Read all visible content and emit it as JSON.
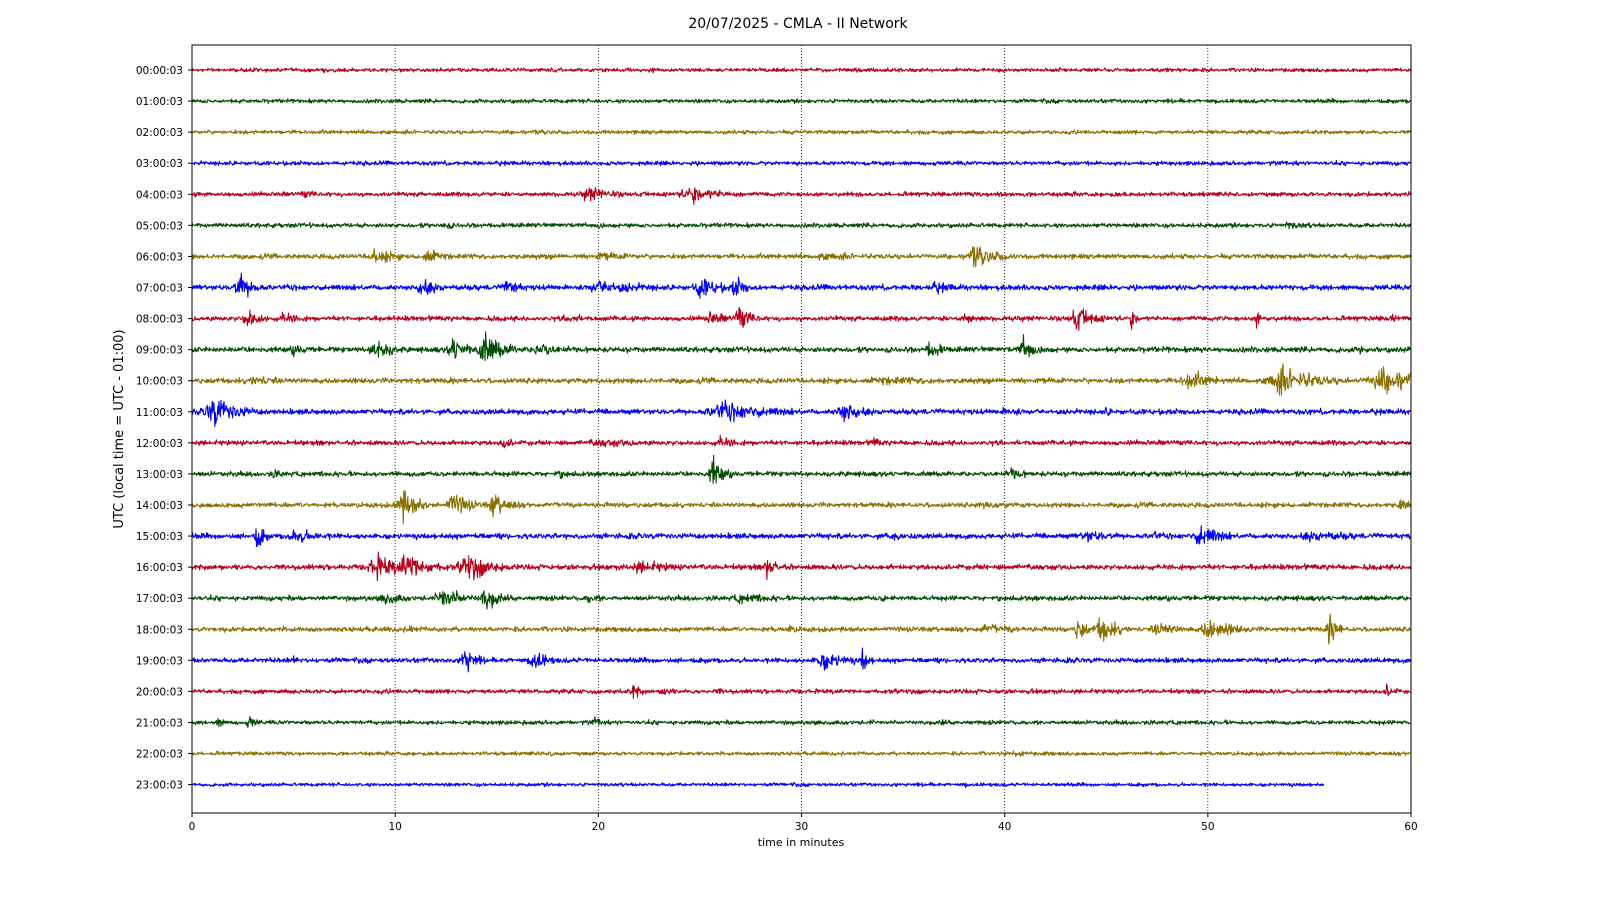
{
  "chart_data": {
    "type": "line",
    "title": "20/07/2025 - CMLA - II Network",
    "xlabel": "time in minutes",
    "ylabel": "UTC (local time = UTC - 01:00)",
    "xlim": [
      0,
      60
    ],
    "x_ticks": [
      "0",
      "10",
      "20",
      "30",
      "40",
      "50",
      "60"
    ],
    "grid": "vertical dotted lines at x ticks",
    "colors": [
      "#b5001b",
      "#004d00",
      "#8a7000",
      "#0000f5"
    ],
    "traces": [
      {
        "label": "00:00:03",
        "color": "#b5001b",
        "end_min": 60,
        "noise": 1.5,
        "events": [
          {
            "t": 22.7,
            "amp": 2,
            "w": 0.2
          },
          {
            "t": 16,
            "amp": 1,
            "w": 1
          }
        ]
      },
      {
        "label": "01:00:03",
        "color": "#004d00",
        "end_min": 60,
        "noise": 1.6,
        "events": [
          {
            "t": 49,
            "amp": 1.2,
            "w": 0.6
          }
        ]
      },
      {
        "label": "02:00:03",
        "color": "#8a7000",
        "end_min": 60,
        "noise": 1.6,
        "events": [
          {
            "t": 36.5,
            "amp": 1.5,
            "w": 0.3
          },
          {
            "t": 47.7,
            "amp": 1.2,
            "w": 0.3
          }
        ]
      },
      {
        "label": "03:00:03",
        "color": "#0000f5",
        "end_min": 60,
        "noise": 1.7,
        "events": [
          {
            "t": 12,
            "amp": 1,
            "w": 0.5
          }
        ]
      },
      {
        "label": "04:00:03",
        "color": "#b5001b",
        "end_min": 60,
        "noise": 1.8,
        "events": [
          {
            "t": 19.5,
            "amp": 6,
            "w": 1.3
          },
          {
            "t": 24.5,
            "amp": 6.5,
            "w": 1.7
          },
          {
            "t": 5.5,
            "amp": 3,
            "w": 1
          },
          {
            "t": 39.7,
            "amp": 3,
            "w": 0.5
          }
        ]
      },
      {
        "label": "05:00:03",
        "color": "#004d00",
        "end_min": 60,
        "noise": 1.8,
        "events": [
          {
            "t": 12.3,
            "amp": 3,
            "w": 1
          },
          {
            "t": 20,
            "amp": 3.5,
            "w": 0.4
          },
          {
            "t": 54,
            "amp": 3,
            "w": 1.5
          }
        ]
      },
      {
        "label": "06:00:03",
        "color": "#8a7000",
        "end_min": 60,
        "noise": 2,
        "events": [
          {
            "t": 9,
            "amp": 7,
            "w": 1
          },
          {
            "t": 11.5,
            "amp": 6,
            "w": 1
          },
          {
            "t": 38.5,
            "amp": 8,
            "w": 1.3
          },
          {
            "t": 20,
            "amp": 3,
            "w": 3
          },
          {
            "t": 31,
            "amp": 3,
            "w": 3
          }
        ]
      },
      {
        "label": "07:00:03",
        "color": "#0000f5",
        "end_min": 60,
        "noise": 2.2,
        "events": [
          {
            "t": 2.3,
            "amp": 12,
            "w": 0.7
          },
          {
            "t": 11.3,
            "amp": 9,
            "w": 0.7
          },
          {
            "t": 15.5,
            "amp": 8,
            "w": 0.6
          },
          {
            "t": 20,
            "amp": 6,
            "w": 2.5
          },
          {
            "t": 25,
            "amp": 9,
            "w": 1
          },
          {
            "t": 26.7,
            "amp": 10,
            "w": 0.5
          },
          {
            "t": 36.5,
            "amp": 4,
            "w": 1.5
          }
        ]
      },
      {
        "label": "08:00:03",
        "color": "#b5001b",
        "end_min": 60,
        "noise": 2,
        "events": [
          {
            "t": 2.7,
            "amp": 10,
            "w": 0.6
          },
          {
            "t": 4.5,
            "amp": 5,
            "w": 1
          },
          {
            "t": 18.5,
            "amp": 4,
            "w": 1
          },
          {
            "t": 25.5,
            "amp": 5,
            "w": 1
          },
          {
            "t": 26.9,
            "amp": 11,
            "w": 0.6
          },
          {
            "t": 38,
            "amp": 5,
            "w": 0.8
          },
          {
            "t": 43.5,
            "amp": 10,
            "w": 0.9
          },
          {
            "t": 46.2,
            "amp": 7,
            "w": 0.4
          },
          {
            "t": 52.4,
            "amp": 9,
            "w": 0.2
          },
          {
            "t": 59,
            "amp": 4,
            "w": 0.4
          }
        ]
      },
      {
        "label": "09:00:03",
        "color": "#004d00",
        "end_min": 60,
        "noise": 2.2,
        "events": [
          {
            "t": 9,
            "amp": 10,
            "w": 0.8
          },
          {
            "t": 12.8,
            "amp": 11,
            "w": 0.7
          },
          {
            "t": 14.3,
            "amp": 14,
            "w": 1
          },
          {
            "t": 17,
            "amp": 6,
            "w": 1.2
          },
          {
            "t": 36.3,
            "amp": 8,
            "w": 0.6
          },
          {
            "t": 40.9,
            "amp": 10,
            "w": 0.7
          },
          {
            "t": 5,
            "amp": 4,
            "w": 1
          },
          {
            "t": 57.5,
            "amp": 4,
            "w": 0.4
          }
        ]
      },
      {
        "label": "10:00:03",
        "color": "#8a7000",
        "end_min": 60,
        "noise": 2.2,
        "events": [
          {
            "t": 49,
            "amp": 8,
            "w": 1.2
          },
          {
            "t": 53.5,
            "amp": 12,
            "w": 1.8
          },
          {
            "t": 58.5,
            "amp": 11,
            "w": 2
          },
          {
            "t": 3,
            "amp": 4,
            "w": 2
          },
          {
            "t": 34,
            "amp": 3,
            "w": 5
          }
        ]
      },
      {
        "label": "11:00:03",
        "color": "#0000f5",
        "end_min": 60,
        "noise": 2.2,
        "events": [
          {
            "t": 1,
            "amp": 13,
            "w": 1.2
          },
          {
            "t": 26,
            "amp": 8,
            "w": 2.5
          },
          {
            "t": 32,
            "amp": 9,
            "w": 1
          },
          {
            "t": 40,
            "amp": 3,
            "w": 2
          },
          {
            "t": 45,
            "amp": 4,
            "w": 0.3
          }
        ]
      },
      {
        "label": "12:00:03",
        "color": "#b5001b",
        "end_min": 60,
        "noise": 2,
        "events": [
          {
            "t": 15.3,
            "amp": 5,
            "w": 0.6
          },
          {
            "t": 26,
            "amp": 5,
            "w": 1
          },
          {
            "t": 33.5,
            "amp": 5,
            "w": 0.4
          },
          {
            "t": 20,
            "amp": 3,
            "w": 4
          }
        ]
      },
      {
        "label": "13:00:03",
        "color": "#004d00",
        "end_min": 60,
        "noise": 2,
        "events": [
          {
            "t": 25.6,
            "amp": 14,
            "w": 0.5
          },
          {
            "t": 40.3,
            "amp": 5,
            "w": 0.8
          },
          {
            "t": 18,
            "amp": 3,
            "w": 1
          },
          {
            "t": 4,
            "amp": 3,
            "w": 1
          }
        ]
      },
      {
        "label": "14:00:03",
        "color": "#8a7000",
        "end_min": 60,
        "noise": 2,
        "events": [
          {
            "t": 10.3,
            "amp": 14,
            "w": 0.8
          },
          {
            "t": 12.8,
            "amp": 10,
            "w": 0.9
          },
          {
            "t": 14.8,
            "amp": 10,
            "w": 0.8
          },
          {
            "t": 59.5,
            "amp": 6,
            "w": 0.5
          },
          {
            "t": 39,
            "amp": 3,
            "w": 2
          }
        ]
      },
      {
        "label": "15:00:03",
        "color": "#0000f5",
        "end_min": 60,
        "noise": 2.2,
        "events": [
          {
            "t": 3.2,
            "amp": 14,
            "w": 0.3
          },
          {
            "t": 5,
            "amp": 6,
            "w": 1.5
          },
          {
            "t": 34.5,
            "amp": 5,
            "w": 0.4
          },
          {
            "t": 44,
            "amp": 5,
            "w": 1.5
          },
          {
            "t": 47.3,
            "amp": 6,
            "w": 0.3
          },
          {
            "t": 49.6,
            "amp": 10,
            "w": 1
          },
          {
            "t": 55,
            "amp": 4,
            "w": 3
          }
        ]
      },
      {
        "label": "16:00:03",
        "color": "#b5001b",
        "end_min": 60,
        "noise": 2.2,
        "events": [
          {
            "t": 9,
            "amp": 11,
            "w": 1.2
          },
          {
            "t": 10.5,
            "amp": 12,
            "w": 1.2
          },
          {
            "t": 13.5,
            "amp": 11,
            "w": 1.3
          },
          {
            "t": 22,
            "amp": 5,
            "w": 2
          },
          {
            "t": 28.3,
            "amp": 9,
            "w": 0.6
          }
        ]
      },
      {
        "label": "17:00:03",
        "color": "#004d00",
        "end_min": 60,
        "noise": 2,
        "events": [
          {
            "t": 9.5,
            "amp": 5,
            "w": 1
          },
          {
            "t": 12.3,
            "amp": 10,
            "w": 1
          },
          {
            "t": 14.4,
            "amp": 11,
            "w": 0.7
          },
          {
            "t": 19.5,
            "amp": 4,
            "w": 0.8
          },
          {
            "t": 27,
            "amp": 4,
            "w": 2
          },
          {
            "t": 34,
            "amp": 4,
            "w": 0.3
          }
        ]
      },
      {
        "label": "18:00:03",
        "color": "#8a7000",
        "end_min": 60,
        "noise": 2,
        "events": [
          {
            "t": 10.7,
            "amp": 5,
            "w": 0.3
          },
          {
            "t": 29.4,
            "amp": 5,
            "w": 0.3
          },
          {
            "t": 43.6,
            "amp": 12,
            "w": 0.4
          },
          {
            "t": 44.7,
            "amp": 12,
            "w": 0.8
          },
          {
            "t": 47.5,
            "amp": 7,
            "w": 1
          },
          {
            "t": 50,
            "amp": 10,
            "w": 1.2
          },
          {
            "t": 56,
            "amp": 16,
            "w": 0.35
          },
          {
            "t": 39,
            "amp": 4,
            "w": 2
          }
        ]
      },
      {
        "label": "19:00:03",
        "color": "#0000f5",
        "end_min": 60,
        "noise": 2,
        "events": [
          {
            "t": 13.4,
            "amp": 14,
            "w": 0.5
          },
          {
            "t": 16.8,
            "amp": 9,
            "w": 0.7
          },
          {
            "t": 31,
            "amp": 8,
            "w": 1.2
          },
          {
            "t": 33,
            "amp": 11,
            "w": 0.3
          },
          {
            "t": 5,
            "amp": 4,
            "w": 0.3
          }
        ]
      },
      {
        "label": "20:00:03",
        "color": "#b5001b",
        "end_min": 60,
        "noise": 1.8,
        "events": [
          {
            "t": 21.7,
            "amp": 7,
            "w": 0.4
          },
          {
            "t": 23.2,
            "amp": 6,
            "w": 0.4
          },
          {
            "t": 25.9,
            "amp": 4,
            "w": 0.2
          },
          {
            "t": 58.8,
            "amp": 6,
            "w": 0.4
          }
        ]
      },
      {
        "label": "21:00:03",
        "color": "#004d00",
        "end_min": 60,
        "noise": 1.7,
        "events": [
          {
            "t": 1.3,
            "amp": 4,
            "w": 0.5
          },
          {
            "t": 2.8,
            "amp": 6,
            "w": 0.4
          },
          {
            "t": 19.8,
            "amp": 4,
            "w": 0.5
          },
          {
            "t": 36.9,
            "amp": 5,
            "w": 0.15
          },
          {
            "t": 33.4,
            "amp": 3,
            "w": 0.15
          }
        ]
      },
      {
        "label": "22:00:03",
        "color": "#8a7000",
        "end_min": 60,
        "noise": 1.5,
        "events": [
          {
            "t": 17.7,
            "amp": 3,
            "w": 0.5
          },
          {
            "t": 40.5,
            "amp": 3,
            "w": 0.8
          },
          {
            "t": 42,
            "amp": 2,
            "w": 0.5
          }
        ]
      },
      {
        "label": "23:00:03",
        "color": "#0000f5",
        "end_min": 55.7,
        "noise": 1.4,
        "events": [
          {
            "t": 38,
            "amp": 2,
            "w": 0.3
          }
        ]
      }
    ]
  }
}
